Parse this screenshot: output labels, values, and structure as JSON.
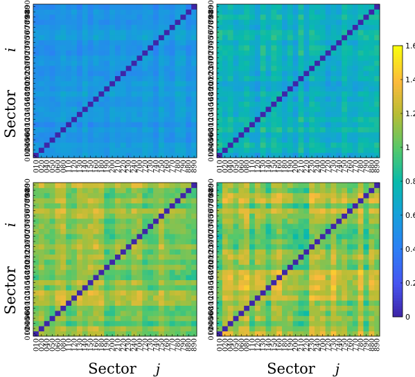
{
  "chart_data": {
    "type": "heatmap",
    "panels": 4,
    "sector_labels": [
      "010",
      "020",
      "040",
      "050",
      "060",
      "080",
      "110",
      "120",
      "130",
      "140",
      "150",
      "160",
      "180",
      "190",
      "200",
      "210",
      "220",
      "230",
      "240",
      "700",
      "720",
      "730",
      "740",
      "750",
      "760",
      "770",
      "780",
      "790",
      "880",
      "890"
    ],
    "ylabel_word": "Sector",
    "ylabel_var": "i",
    "xlabel_word": "Sector",
    "xlabel_var": "j",
    "colorbar": {
      "min": 0,
      "max": 1.6,
      "ticks": [
        "0",
        "0.2",
        "0.4",
        "0.6",
        "0.8",
        "1",
        "1.2",
        "1.4",
        "1.6"
      ],
      "colormap": "parula"
    },
    "panel_levels": [
      {
        "name": "top-left",
        "mean": 0.55,
        "spread": 0.08,
        "diagonal": 0.0
      },
      {
        "name": "top-right",
        "mean": 0.72,
        "spread": 0.12,
        "diagonal": 0.0
      },
      {
        "name": "bottom-left",
        "mean": 1.1,
        "spread": 0.16,
        "diagonal": 0.0
      },
      {
        "name": "bottom-right",
        "mean": 1.1,
        "spread": 0.18,
        "diagonal": 0.0
      }
    ]
  }
}
